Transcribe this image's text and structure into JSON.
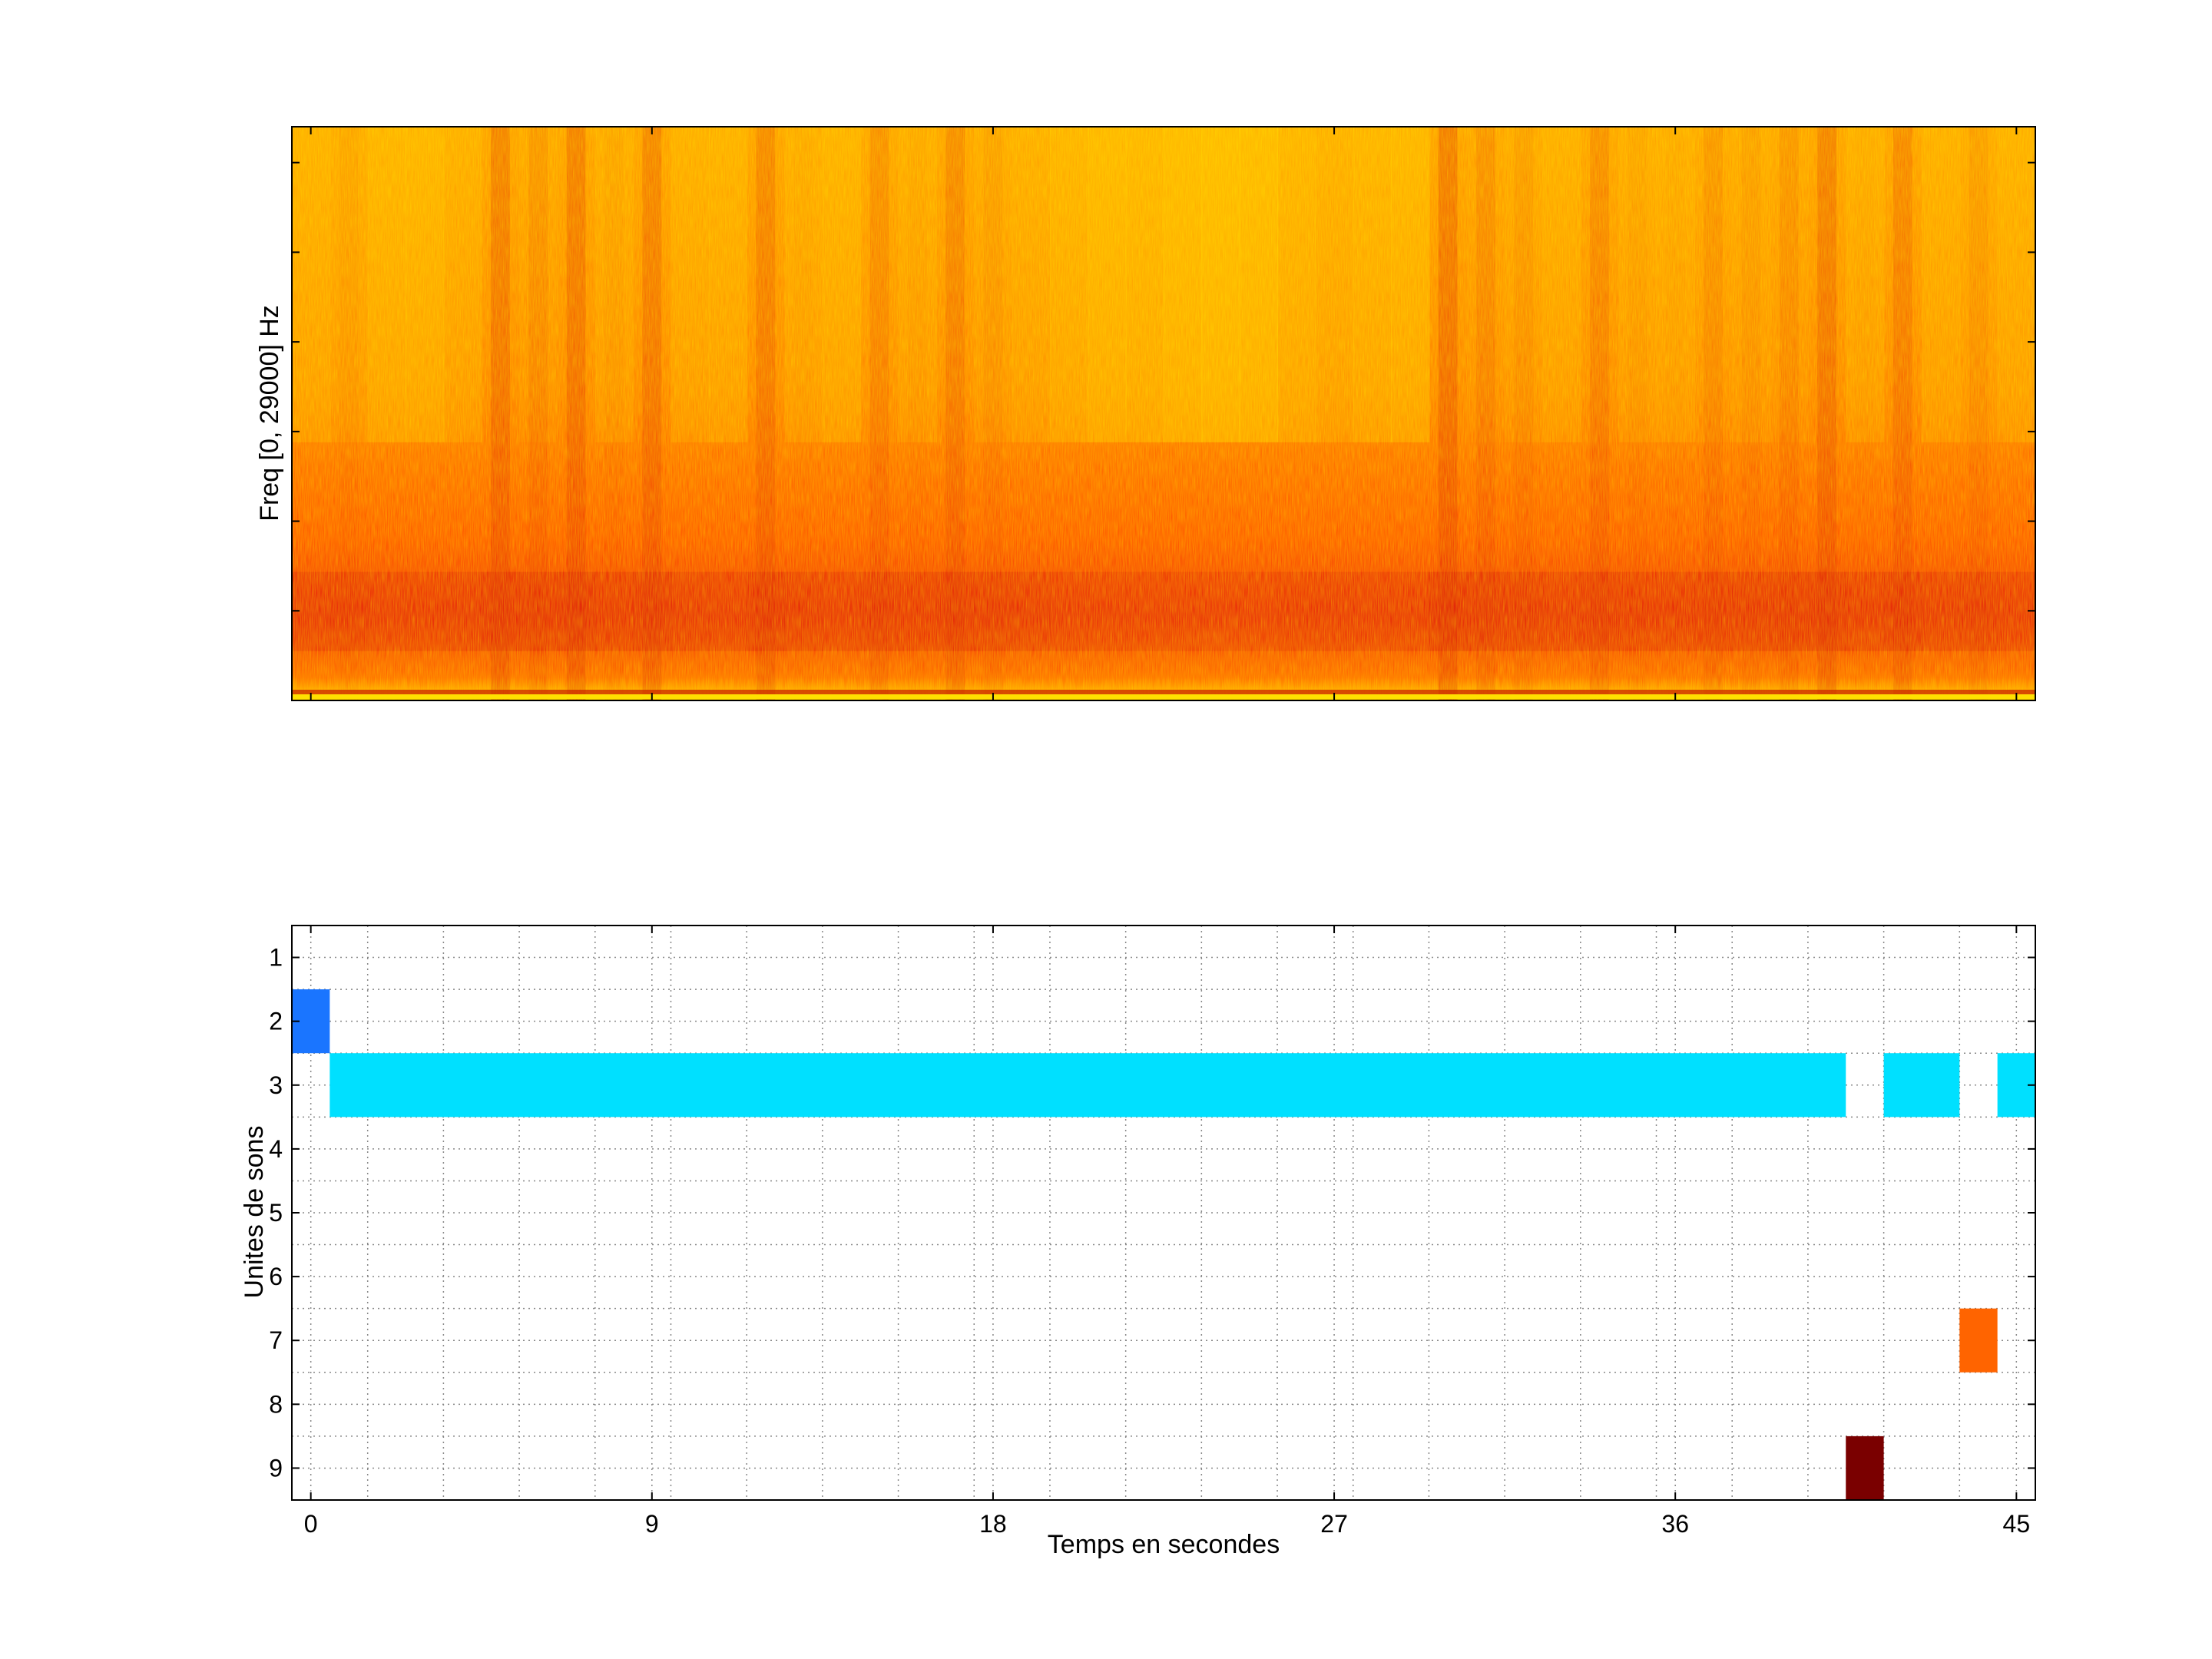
{
  "chart_data": [
    {
      "type": "heatmap",
      "ylabel": "Freq [0, 29000] Hz",
      "xlabel": "",
      "x_ticks_labeled": false,
      "y_ticks_labeled": false,
      "xlim": [
        -0.5,
        45.5
      ],
      "ylim": [
        0,
        29000
      ],
      "colormap": [
        "#d81e00",
        "#ff5a00",
        "#ff8c00",
        "#ffc800"
      ],
      "time_energy_profile": [
        0.65,
        0.55,
        0.7,
        0.72,
        0.6,
        0.3,
        0.45,
        0.28,
        0.55,
        0.32,
        0.6,
        0.62,
        0.35,
        0.58,
        0.66,
        0.42,
        0.56,
        0.38,
        0.52,
        0.6,
        0.7,
        0.8,
        0.78,
        0.85,
        0.9,
        0.88,
        0.72,
        0.62,
        0.7,
        0.75,
        0.25,
        0.42,
        0.5,
        0.6,
        0.4,
        0.55,
        0.58,
        0.46,
        0.52,
        0.45,
        0.3,
        0.58,
        0.36,
        0.6,
        0.5,
        0.62
      ],
      "low_band_hz": [
        2500,
        6500
      ]
    },
    {
      "type": "heatmap",
      "xlabel": "Temps en secondes",
      "ylabel": "Unites de sons",
      "xlim": [
        -0.5,
        45.5
      ],
      "ylim": [
        0.5,
        9.5
      ],
      "x_ticks": [
        0,
        9,
        18,
        27,
        36,
        45
      ],
      "y_ticks": [
        1,
        2,
        3,
        4,
        5,
        6,
        7,
        8,
        9
      ],
      "grid": true,
      "cells": [
        {
          "unit": 2,
          "x_start": -0.5,
          "x_end": 0.5,
          "color": "#1a75ff"
        },
        {
          "unit": 3,
          "x_start": 0.5,
          "x_end": 40.5,
          "color": "#00e0ff"
        },
        {
          "unit": 3,
          "x_start": 41.5,
          "x_end": 43.5,
          "color": "#00e0ff"
        },
        {
          "unit": 3,
          "x_start": 44.5,
          "x_end": 45.5,
          "color": "#00e0ff"
        },
        {
          "unit": 7,
          "x_start": 43.5,
          "x_end": 44.5,
          "color": "#ff6400"
        },
        {
          "unit": 9,
          "x_start": 40.5,
          "x_end": 41.5,
          "color": "#7a0000"
        }
      ]
    }
  ]
}
